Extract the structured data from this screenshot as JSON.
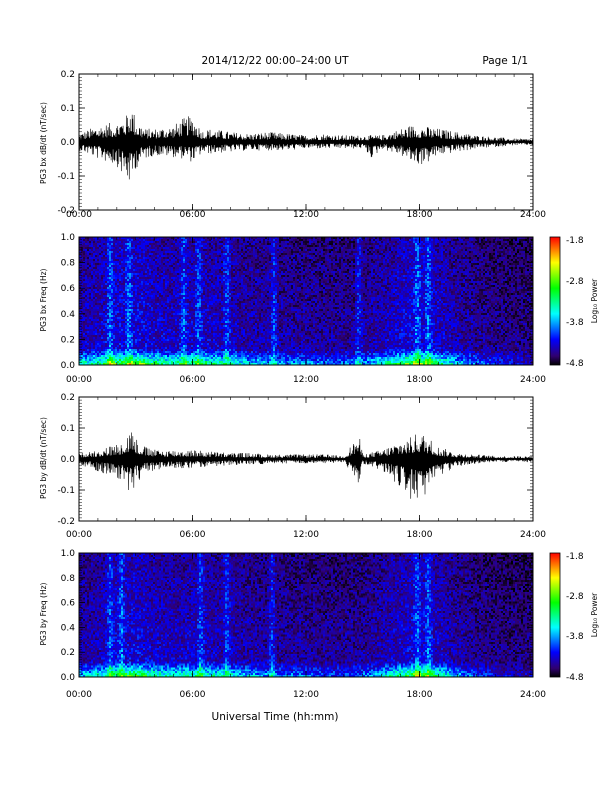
{
  "header": {
    "title": "2014/12/22  00:00–24:00 UT",
    "page": "Page 1/1"
  },
  "footer": {
    "xlabel": "Universal Time (hh:mm)"
  },
  "colors": {
    "trace": "#000000",
    "frame": "#000000",
    "background": "#ffffff"
  },
  "colorbar": {
    "label": "Log₁₀ Power",
    "ticks": [
      "-1.8",
      "-2.8",
      "-3.8",
      "-4.8"
    ],
    "stops": [
      "#ff0000",
      "#ffff00",
      "#00ff00",
      "#00ffff",
      "#0000ff",
      "#000000"
    ]
  },
  "chart_data": [
    {
      "type": "line",
      "ylabel": "PG3 bx dB/dt (nT/sec)",
      "xlim": [
        0,
        24
      ],
      "ylim": [
        -0.2,
        0.2
      ],
      "x_ticks": [
        "00:00",
        "06:00",
        "12:00",
        "18:00",
        "24:00"
      ],
      "y_ticks": [
        "0.2",
        "0.1",
        "0.0",
        "-0.1",
        "-0.2"
      ],
      "envelope": {
        "x_hours": [
          0,
          1,
          2,
          2.5,
          2.75,
          3,
          3.5,
          4,
          5,
          5.5,
          6,
          6.5,
          7,
          8,
          9,
          10,
          11,
          12,
          13,
          14,
          15,
          15.5,
          16,
          17,
          17.5,
          18,
          18.5,
          19,
          20,
          21,
          22,
          23,
          24
        ],
        "max": [
          0.025,
          0.05,
          0.06,
          0.08,
          0.12,
          0.07,
          0.04,
          0.04,
          0.05,
          0.07,
          0.08,
          0.035,
          0.04,
          0.03,
          0.025,
          0.03,
          0.025,
          0.02,
          0.025,
          0.02,
          0.02,
          0.02,
          0.02,
          0.04,
          0.05,
          0.05,
          0.045,
          0.04,
          0.03,
          0.02,
          0.015,
          0.01,
          0.01
        ],
        "min": [
          -0.025,
          -0.05,
          -0.07,
          -0.12,
          -0.13,
          -0.08,
          -0.05,
          -0.04,
          -0.045,
          -0.05,
          -0.06,
          -0.035,
          -0.035,
          -0.03,
          -0.025,
          -0.025,
          -0.025,
          -0.02,
          -0.02,
          -0.02,
          -0.02,
          -0.05,
          -0.02,
          -0.04,
          -0.06,
          -0.07,
          -0.06,
          -0.04,
          -0.03,
          -0.02,
          -0.015,
          -0.01,
          -0.01
        ]
      }
    },
    {
      "type": "heatmap",
      "ylabel": "PG3 bx Freq (Hz)",
      "xlim": [
        0,
        24
      ],
      "ylim": [
        0.0,
        1.0
      ],
      "x_ticks": [
        "00:00",
        "06:00",
        "12:00",
        "18:00",
        "24:00"
      ],
      "y_ticks": [
        "1.0",
        "0.8",
        "0.6",
        "0.4",
        "0.2",
        "0.0"
      ],
      "zlim": [
        -4.8,
        -1.8
      ],
      "zlabel": "Log₁₀ Power",
      "activity": {
        "x_hours": [
          0,
          1,
          2,
          3,
          4,
          5,
          6,
          7,
          8,
          9,
          10,
          11,
          12,
          13,
          14,
          15,
          16,
          17,
          18,
          19,
          20,
          21,
          22,
          23,
          24
        ],
        "level": [
          0.55,
          0.65,
          0.8,
          0.85,
          0.7,
          0.65,
          0.7,
          0.65,
          0.6,
          0.5,
          0.45,
          0.4,
          0.4,
          0.35,
          0.35,
          0.4,
          0.55,
          0.75,
          0.85,
          0.7,
          0.5,
          0.35,
          0.25,
          0.2,
          0.15
        ]
      },
      "bright_stripes_hours": [
        1.6,
        2.6,
        5.5,
        6.3,
        7.8,
        10.3,
        14.8,
        17.9,
        18.5
      ]
    },
    {
      "type": "line",
      "ylabel": "PG3 by dB/dt (nT/sec)",
      "xlim": [
        0,
        24
      ],
      "ylim": [
        -0.2,
        0.2
      ],
      "x_ticks": [
        "00:00",
        "06:00",
        "12:00",
        "18:00",
        "24:00"
      ],
      "y_ticks": [
        "0.2",
        "0.1",
        "0.0",
        "-0.1",
        "-0.2"
      ],
      "envelope": {
        "x_hours": [
          0,
          1,
          2,
          2.5,
          2.75,
          3,
          3.5,
          4,
          5,
          6,
          7,
          8,
          9,
          10,
          11,
          12,
          13,
          14,
          14.8,
          15,
          16,
          17,
          17.5,
          18,
          18.5,
          19,
          20,
          21,
          22,
          23,
          24
        ],
        "max": [
          0.02,
          0.03,
          0.05,
          0.07,
          0.11,
          0.07,
          0.04,
          0.03,
          0.03,
          0.03,
          0.025,
          0.02,
          0.02,
          0.015,
          0.015,
          0.015,
          0.015,
          0.01,
          0.08,
          0.015,
          0.03,
          0.06,
          0.07,
          0.09,
          0.07,
          0.04,
          0.02,
          0.015,
          0.01,
          0.01,
          0.01
        ],
        "min": [
          -0.02,
          -0.04,
          -0.06,
          -0.09,
          -0.12,
          -0.08,
          -0.05,
          -0.04,
          -0.03,
          -0.03,
          -0.025,
          -0.02,
          -0.02,
          -0.015,
          -0.015,
          -0.015,
          -0.015,
          -0.01,
          -0.09,
          -0.015,
          -0.04,
          -0.09,
          -0.13,
          -0.14,
          -0.12,
          -0.06,
          -0.025,
          -0.015,
          -0.01,
          -0.01,
          -0.01
        ]
      }
    },
    {
      "type": "heatmap",
      "ylabel": "PG3 by Freq (Hz)",
      "xlim": [
        0,
        24
      ],
      "ylim": [
        0.0,
        1.0
      ],
      "x_ticks": [
        "00:00",
        "06:00",
        "12:00",
        "18:00",
        "24:00"
      ],
      "y_ticks": [
        "1.0",
        "0.8",
        "0.6",
        "0.4",
        "0.2",
        "0.0"
      ],
      "zlim": [
        -4.8,
        -1.8
      ],
      "zlabel": "Log₁₀ Power",
      "activity": {
        "x_hours": [
          0,
          1,
          2,
          3,
          4,
          5,
          6,
          7,
          8,
          9,
          10,
          11,
          12,
          13,
          14,
          15,
          16,
          17,
          18,
          19,
          20,
          21,
          22,
          23,
          24
        ],
        "level": [
          0.45,
          0.55,
          0.75,
          0.8,
          0.65,
          0.6,
          0.65,
          0.6,
          0.55,
          0.45,
          0.4,
          0.35,
          0.35,
          0.3,
          0.3,
          0.35,
          0.5,
          0.7,
          0.8,
          0.65,
          0.45,
          0.3,
          0.2,
          0.15,
          0.12
        ]
      },
      "bright_stripes_hours": [
        1.6,
        2.2,
        6.4,
        7.8,
        10.2,
        17.9,
        18.5
      ]
    }
  ]
}
